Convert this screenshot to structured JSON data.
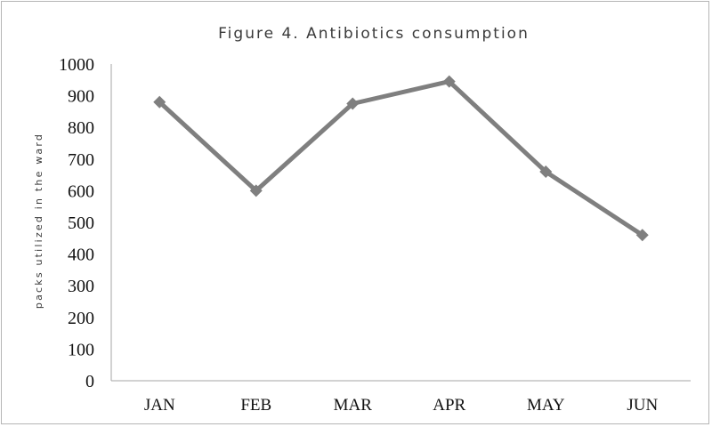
{
  "chart_data": {
    "type": "line",
    "title": "Figure 4. Antibiotics consumption",
    "xlabel": "",
    "ylabel": "packs utilized in the ward",
    "categories": [
      "JAN",
      "FEB",
      "MAR",
      "APR",
      "MAY",
      "JUN"
    ],
    "series": [
      {
        "values": [
          880,
          600,
          875,
          945,
          660,
          460
        ]
      }
    ],
    "ylim": [
      0,
      1000
    ],
    "yticks": [
      0,
      100,
      200,
      300,
      400,
      500,
      600,
      700,
      800,
      900,
      1000
    ],
    "grid": false,
    "legend": "none",
    "marker": "diamond",
    "colors": {
      "series": "#7f7f7f",
      "axis": "#a6a6a6"
    }
  }
}
